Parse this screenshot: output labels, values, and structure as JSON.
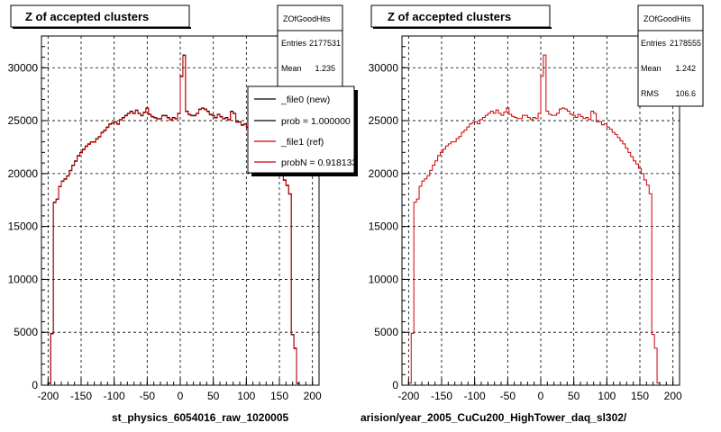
{
  "footer_note": "",
  "chart_data": [
    {
      "type": "histogram",
      "title": "Z of accepted clusters",
      "xlabel": "",
      "ylabel": "",
      "caption": "st_physics_6054016_raw_1020005",
      "xlim": [
        -210,
        210
      ],
      "ylim": [
        0,
        33000
      ],
      "grid": true,
      "xticks": [
        -200,
        -150,
        -100,
        -50,
        0,
        50,
        100,
        150,
        200
      ],
      "yticks": [
        0,
        5000,
        10000,
        15000,
        20000,
        25000,
        30000
      ],
      "stats": {
        "name": "ZOfGoodHits",
        "rows": [
          {
            "label": "Entries",
            "value": "2177531"
          },
          {
            "label": "Mean",
            "value": "1.235"
          }
        ]
      },
      "legend": {
        "placement": "top-right",
        "entries": [
          {
            "label": "_file0 (new)",
            "color": "#000000"
          },
          {
            "label": "prob = 1.000000",
            "color": "#000000"
          },
          {
            "label": "_file1 (ref)",
            "color": "#cc0000"
          },
          {
            "label": "probN = 0.918133",
            "color": "#cc0000"
          }
        ]
      },
      "bin_width": 4,
      "bin_start": -200,
      "series": [
        {
          "name": "_file0 (new)",
          "color": "#000000"
        },
        {
          "name": "_file1 (ref)",
          "color": "#cc0000"
        }
      ],
      "values": [
        200,
        4900,
        17300,
        17600,
        18800,
        19300,
        19500,
        19800,
        20300,
        20800,
        21200,
        21700,
        22000,
        22300,
        22600,
        22800,
        23000,
        23000,
        23300,
        23500,
        23900,
        24100,
        24400,
        24700,
        24800,
        24900,
        24700,
        25100,
        25300,
        25500,
        25700,
        25900,
        25700,
        26000,
        25700,
        25500,
        25800,
        26200,
        25600,
        25400,
        25300,
        25200,
        25200,
        25500,
        25500,
        25300,
        25100,
        25300,
        25200,
        25700,
        29200,
        31200,
        25900,
        25600,
        25500,
        25500,
        25700,
        26100,
        26200,
        26100,
        25900,
        25600,
        25500,
        25300,
        25600,
        25400,
        25200,
        25300,
        25100,
        25900,
        25700,
        24900,
        24900,
        24600,
        24700,
        24400,
        24200,
        23900,
        23700,
        23400,
        23100,
        22800,
        22400,
        22000,
        21600,
        21200,
        20900,
        20500,
        20000,
        19400,
        18900,
        18100,
        4800,
        3500,
        200
      ]
    },
    {
      "type": "histogram",
      "title": "Z of accepted clusters",
      "xlabel": "",
      "ylabel": "",
      "caption": "arision/year_2005_CuCu200_HighTower_daq_sl302/",
      "xlim": [
        -210,
        210
      ],
      "ylim": [
        0,
        33000
      ],
      "grid": true,
      "xticks": [
        -200,
        -150,
        -100,
        -50,
        0,
        50,
        100,
        150,
        200
      ],
      "yticks": [
        0,
        5000,
        10000,
        15000,
        20000,
        25000,
        30000
      ],
      "stats": {
        "name": "ZOfGoodHits",
        "rows": [
          {
            "label": "Entries",
            "value": "2178555"
          },
          {
            "label": "Mean",
            "value": "1.242"
          },
          {
            "label": "RMS",
            "value": "106.6"
          }
        ]
      },
      "bin_width": 4,
      "bin_start": -200,
      "series": [
        {
          "name": "",
          "color": "#cc0000"
        }
      ],
      "values": [
        200,
        4900,
        17300,
        17600,
        18800,
        19300,
        19500,
        19800,
        20300,
        20800,
        21200,
        21700,
        22000,
        22300,
        22600,
        22800,
        23000,
        23000,
        23300,
        23500,
        23900,
        24100,
        24400,
        24700,
        24800,
        24900,
        24700,
        25100,
        25300,
        25500,
        25700,
        25900,
        25700,
        26000,
        25700,
        25500,
        25800,
        26200,
        25600,
        25400,
        25300,
        25200,
        25200,
        25500,
        25500,
        25300,
        25100,
        25300,
        25200,
        25700,
        29200,
        31200,
        25900,
        25600,
        25500,
        25500,
        25700,
        26100,
        26200,
        26100,
        25900,
        25600,
        25500,
        25300,
        25600,
        25400,
        25200,
        25300,
        25100,
        25900,
        25700,
        24900,
        24900,
        24600,
        24700,
        24400,
        24200,
        23900,
        23700,
        23400,
        23100,
        22800,
        22400,
        22000,
        21600,
        21200,
        20900,
        20500,
        20000,
        19400,
        18900,
        18100,
        4800,
        3500,
        200
      ]
    }
  ]
}
